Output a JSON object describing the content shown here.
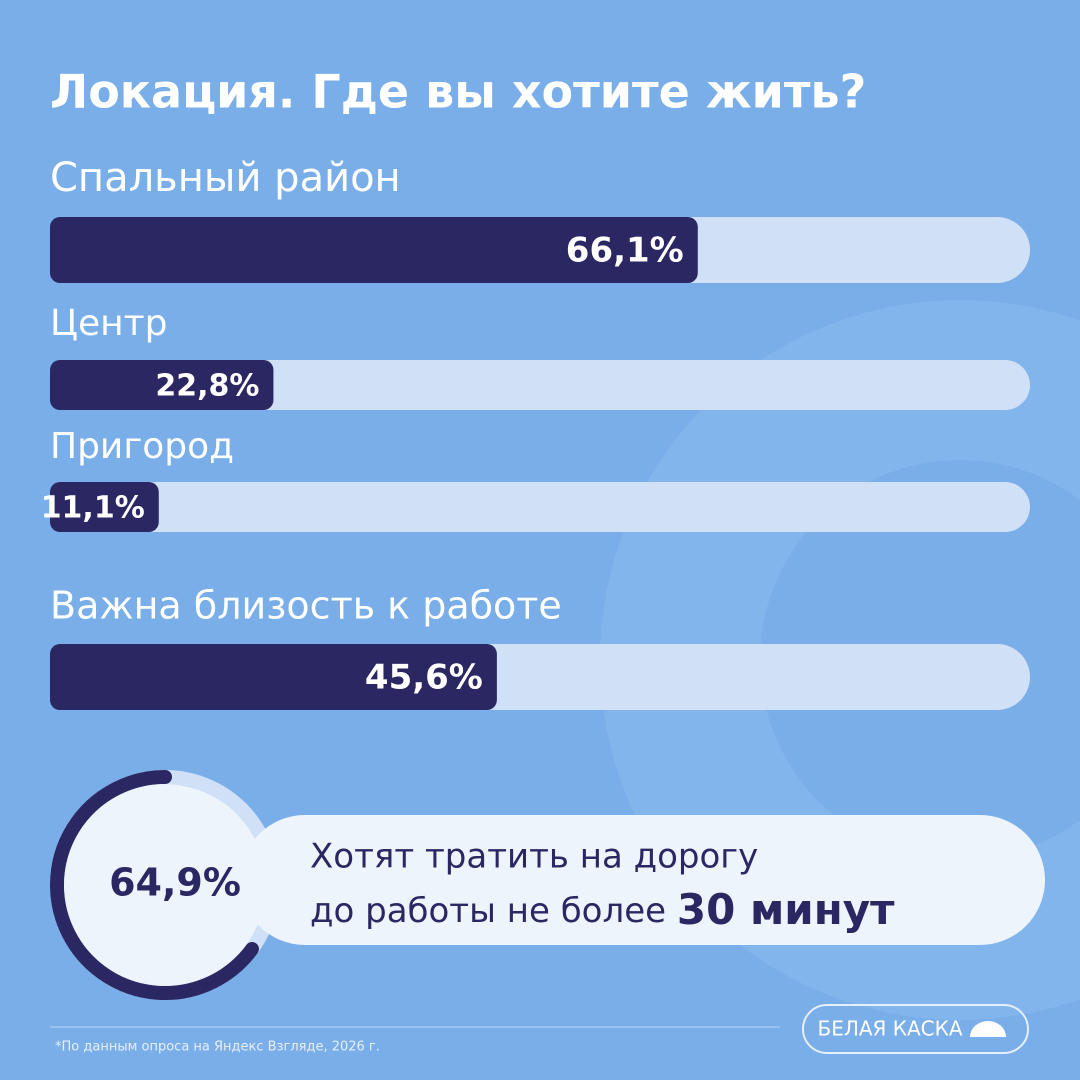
{
  "chart_data": [
    {
      "type": "bar",
      "title": "Локация. Где вы хотите жить?",
      "categories": [
        "Спальный район",
        "Центр",
        "Пригород"
      ],
      "values": [
        66.1,
        22.8,
        11.1
      ],
      "value_labels": [
        "66,1%",
        "22,8%",
        "11,1%"
      ],
      "xlim": [
        0,
        100
      ],
      "color": "#2a2763",
      "track_color": "#cfe0f7"
    },
    {
      "type": "bar",
      "categories": [
        "Важна близость к работе"
      ],
      "values": [
        45.6
      ],
      "value_labels": [
        "45,6%"
      ],
      "xlim": [
        0,
        100
      ],
      "color": "#2a2763",
      "track_color": "#cfe0f7"
    },
    {
      "type": "donut",
      "value": 64.9,
      "value_label": "64,9%",
      "xlim": [
        0,
        100
      ],
      "color": "#2a2763",
      "track_color": "#cfe0f7",
      "text": [
        "Хотят тратить на дорогу",
        "до работы не более",
        "30 минут"
      ]
    }
  ],
  "footnote": "*По данным опроса на Яндекс Взгляде, 2026 г.",
  "logo": "БЕЛАЯ КАСКА"
}
